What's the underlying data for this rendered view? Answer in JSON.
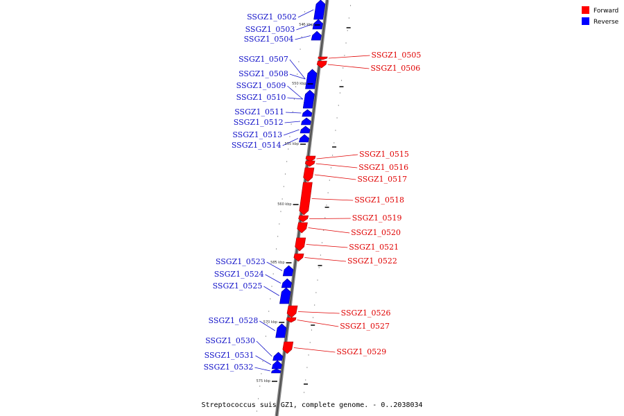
{
  "caption": "Streptococcus suis GZ1, complete genome. - 0..2038034",
  "legend": {
    "forward": "Forward",
    "reverse": "Reverse"
  },
  "colors": {
    "forward": "#ff0000",
    "reverse": "#0000ff",
    "backbone": "#505050"
  },
  "scale_marks": [
    "545 kbp",
    "550 kbp",
    "555 kbp",
    "560 kbp",
    "565 kbp",
    "570 kbp",
    "575 kbp"
  ],
  "genes": [
    {
      "name": "SSGZ1_0502",
      "strand": "reverse"
    },
    {
      "name": "SSGZ1_0503",
      "strand": "reverse"
    },
    {
      "name": "SSGZ1_0504",
      "strand": "reverse"
    },
    {
      "name": "SSGZ1_0505",
      "strand": "forward"
    },
    {
      "name": "SSGZ1_0506",
      "strand": "forward"
    },
    {
      "name": "SSGZ1_0507",
      "strand": "reverse"
    },
    {
      "name": "SSGZ1_0508",
      "strand": "reverse"
    },
    {
      "name": "SSGZ1_0509",
      "strand": "reverse"
    },
    {
      "name": "SSGZ1_0510",
      "strand": "reverse"
    },
    {
      "name": "SSGZ1_0511",
      "strand": "reverse"
    },
    {
      "name": "SSGZ1_0512",
      "strand": "reverse"
    },
    {
      "name": "SSGZ1_0513",
      "strand": "reverse"
    },
    {
      "name": "SSGZ1_0514",
      "strand": "reverse"
    },
    {
      "name": "SSGZ1_0515",
      "strand": "forward"
    },
    {
      "name": "SSGZ1_0516",
      "strand": "forward"
    },
    {
      "name": "SSGZ1_0517",
      "strand": "forward"
    },
    {
      "name": "SSGZ1_0518",
      "strand": "forward"
    },
    {
      "name": "SSGZ1_0519",
      "strand": "forward"
    },
    {
      "name": "SSGZ1_0520",
      "strand": "forward"
    },
    {
      "name": "SSGZ1_0521",
      "strand": "forward"
    },
    {
      "name": "SSGZ1_0522",
      "strand": "forward"
    },
    {
      "name": "SSGZ1_0523",
      "strand": "reverse"
    },
    {
      "name": "SSGZ1_0524",
      "strand": "reverse"
    },
    {
      "name": "SSGZ1_0525",
      "strand": "reverse"
    },
    {
      "name": "SSGZ1_0526",
      "strand": "forward"
    },
    {
      "name": "SSGZ1_0527",
      "strand": "forward"
    },
    {
      "name": "SSGZ1_0528",
      "strand": "reverse"
    },
    {
      "name": "SSGZ1_0529",
      "strand": "forward"
    },
    {
      "name": "SSGZ1_0530",
      "strand": "reverse"
    },
    {
      "name": "SSGZ1_0531",
      "strand": "reverse"
    },
    {
      "name": "SSGZ1_0532",
      "strand": "reverse"
    }
  ]
}
